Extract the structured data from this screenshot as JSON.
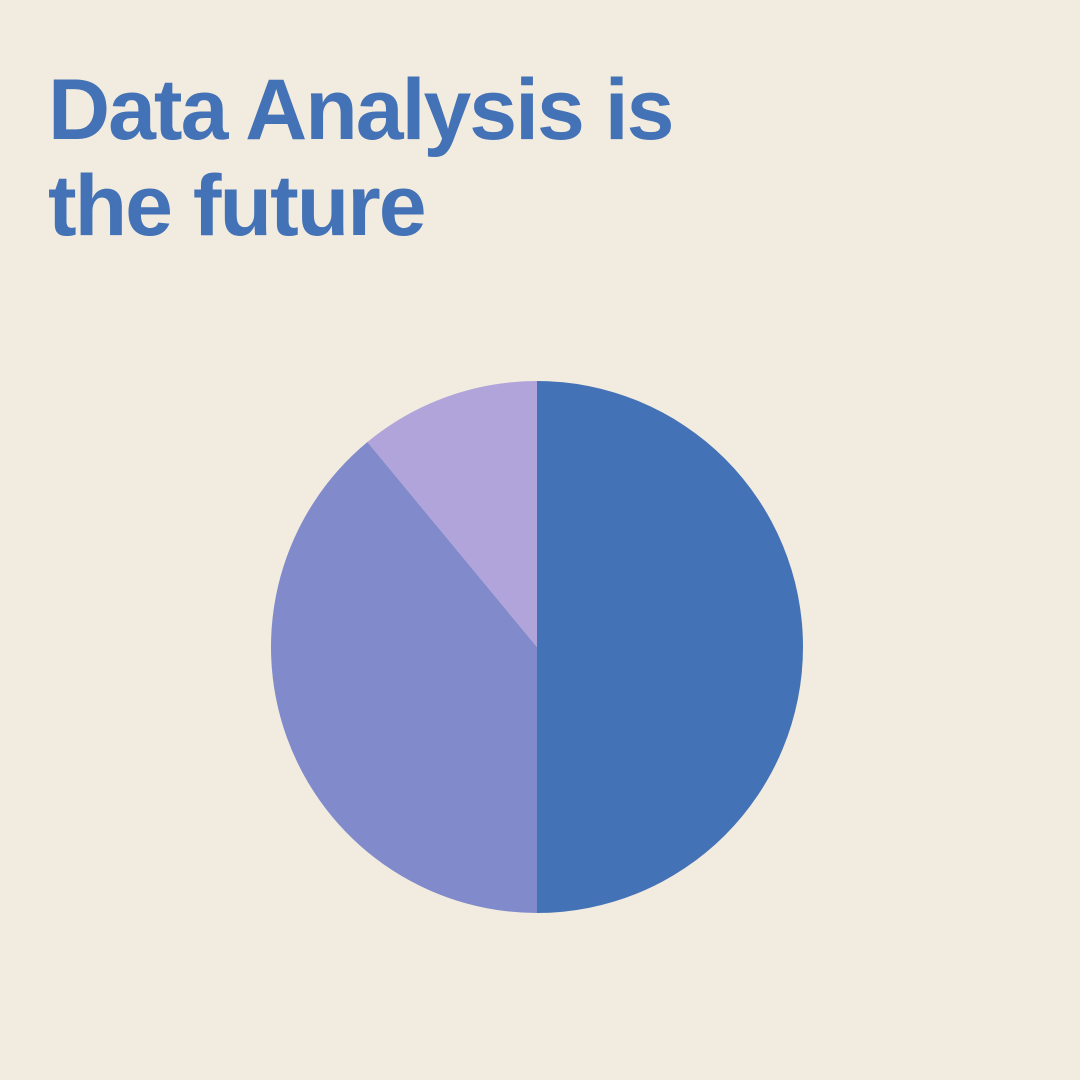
{
  "title": "Data Analysis is the future",
  "colors": {
    "background": "#f2ebdf",
    "title": "#4472b6"
  },
  "chart_data": {
    "type": "pie",
    "title": "Data Analysis is the future",
    "start_angle_deg": 0,
    "direction": "clockwise",
    "values": [
      50,
      39,
      11
    ],
    "colors": [
      "#4472b6",
      "#818acb",
      "#b0a4da"
    ]
  }
}
